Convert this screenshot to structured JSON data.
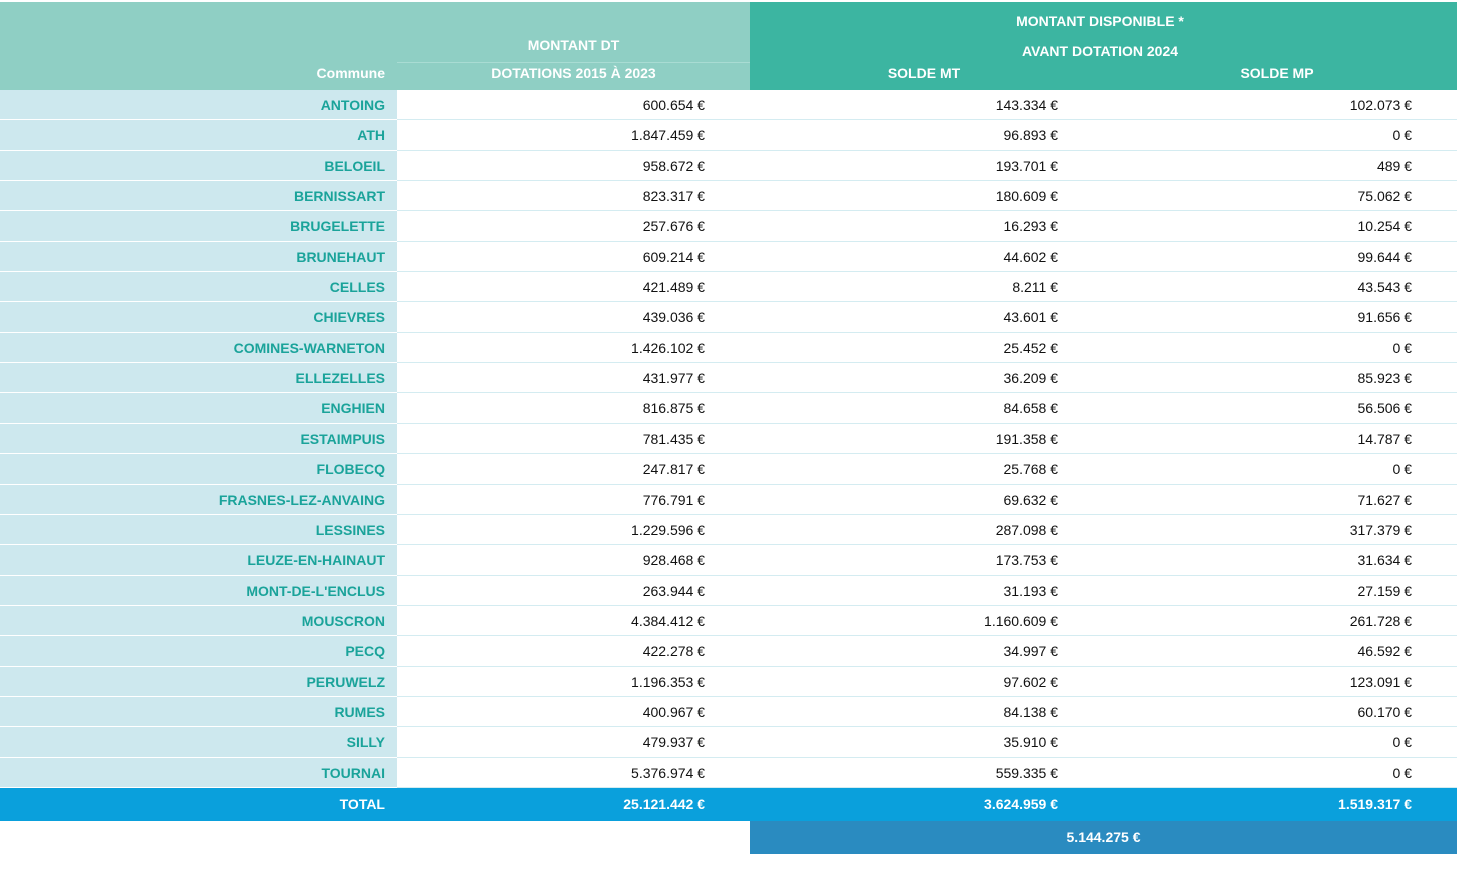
{
  "header": {
    "commune": "Commune",
    "montant_dt_line1": "MONTANT DT",
    "montant_dt_line2": "DOTATIONS 2015 À 2023",
    "disponible_line1": "MONTANT DISPONIBLE *",
    "disponible_line2": "AVANT DOTATION 2024",
    "solde_mt": "SOLDE MT",
    "solde_mp": "SOLDE MP"
  },
  "table": {
    "rows": [
      [
        "ANTOING",
        "600.654 €",
        "143.334 €",
        "102.073 €"
      ],
      [
        "ATH",
        "1.847.459 €",
        "96.893 €",
        "0 €"
      ],
      [
        "BELOEIL",
        "958.672 €",
        "193.701 €",
        "489 €"
      ],
      [
        "BERNISSART",
        "823.317 €",
        "180.609 €",
        "75.062 €"
      ],
      [
        "BRUGELETTE",
        "257.676 €",
        "16.293 €",
        "10.254 €"
      ],
      [
        "BRUNEHAUT",
        "609.214 €",
        "44.602 €",
        "99.644 €"
      ],
      [
        "CELLES",
        "421.489 €",
        "8.211 €",
        "43.543 €"
      ],
      [
        "CHIEVRES",
        "439.036 €",
        "43.601 €",
        "91.656 €"
      ],
      [
        "COMINES-WARNETON",
        "1.426.102 €",
        "25.452 €",
        "0 €"
      ],
      [
        "ELLEZELLES",
        "431.977 €",
        "36.209 €",
        "85.923 €"
      ],
      [
        "ENGHIEN",
        "816.875 €",
        "84.658 €",
        "56.506 €"
      ],
      [
        "ESTAIMPUIS",
        "781.435 €",
        "191.358 €",
        "14.787 €"
      ],
      [
        "FLOBECQ",
        "247.817 €",
        "25.768 €",
        "0 €"
      ],
      [
        "FRASNES-LEZ-ANVAING",
        "776.791 €",
        "69.632 €",
        "71.627 €"
      ],
      [
        "LESSINES",
        "1.229.596 €",
        "287.098 €",
        "317.379 €"
      ],
      [
        "LEUZE-EN-HAINAUT",
        "928.468 €",
        "173.753 €",
        "31.634 €"
      ],
      [
        "MONT-DE-L'ENCLUS",
        "263.944 €",
        "31.193 €",
        "27.159 €"
      ],
      [
        "MOUSCRON",
        "4.384.412 €",
        "1.160.609 €",
        "261.728 €"
      ],
      [
        "PECQ",
        "422.278 €",
        "34.997 €",
        "46.592 €"
      ],
      [
        "PERUWELZ",
        "1.196.353 €",
        "97.602 €",
        "123.091 €"
      ],
      [
        "RUMES",
        "400.967 €",
        "84.138 €",
        "60.170 €"
      ],
      [
        "SILLY",
        "479.937 €",
        "35.910 €",
        "0 €"
      ],
      [
        "TOURNAI",
        "5.376.974 €",
        "559.335 €",
        "0 €"
      ]
    ],
    "total": [
      "TOTAL",
      "25.121.442 €",
      "3.624.959 €",
      "1.519.317 €"
    ],
    "grand_total": "5.144.275 €"
  }
}
